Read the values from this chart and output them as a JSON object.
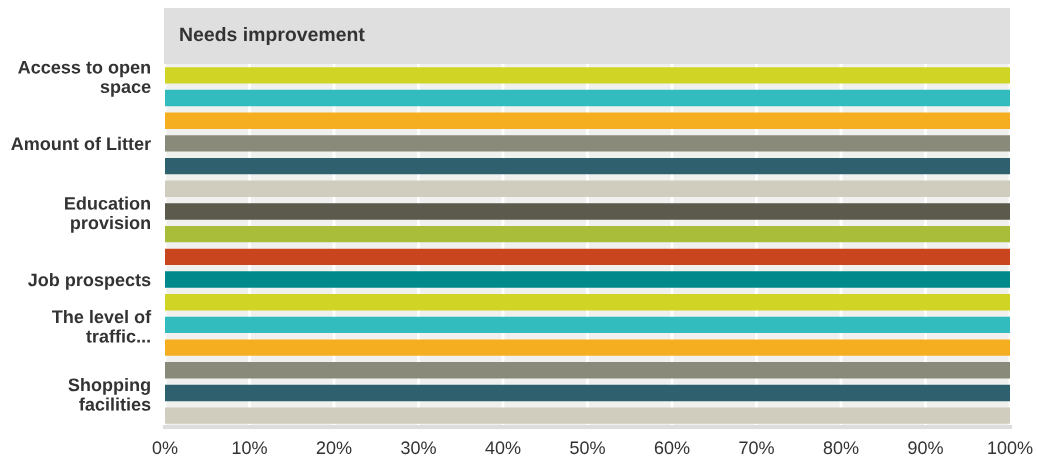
{
  "chart_data": {
    "type": "bar",
    "orientation": "horizontal",
    "title": "Needs improvement",
    "categories": [
      "Access to open space",
      null,
      null,
      "Amount of Litter",
      null,
      null,
      "Education provision",
      null,
      null,
      "Job prospects",
      null,
      "The level of traffic...",
      null,
      null,
      "Shopping facilities",
      null
    ],
    "values": [
      100,
      100,
      100,
      100,
      100,
      100,
      100,
      100,
      100,
      100,
      100,
      100,
      100,
      100,
      100,
      100
    ],
    "colors": [
      "#cfd425",
      "#33bcbe",
      "#f5ae1f",
      "#8a8a7a",
      "#2e606e",
      "#d0cdbe",
      "#5c5a4c",
      "#a9bd3a",
      "#c9451d",
      "#00898a",
      "#cfd425",
      "#33bcbe",
      "#f5ae1f",
      "#8a8a7a",
      "#2e606e",
      "#d0cdbe"
    ],
    "xlim": [
      0,
      100
    ],
    "xticks": [
      {
        "value": 0,
        "label": "0%"
      },
      {
        "value": 10,
        "label": "10%"
      },
      {
        "value": 20,
        "label": "20%"
      },
      {
        "value": 30,
        "label": "30%"
      },
      {
        "value": 40,
        "label": "40%"
      },
      {
        "value": 50,
        "label": "50%"
      },
      {
        "value": 60,
        "label": "60%"
      },
      {
        "value": 70,
        "label": "70%"
      },
      {
        "value": 80,
        "label": "80%"
      },
      {
        "value": 90,
        "label": "90%"
      },
      {
        "value": 100,
        "label": "100%"
      }
    ],
    "grid": "x",
    "legend": false
  }
}
